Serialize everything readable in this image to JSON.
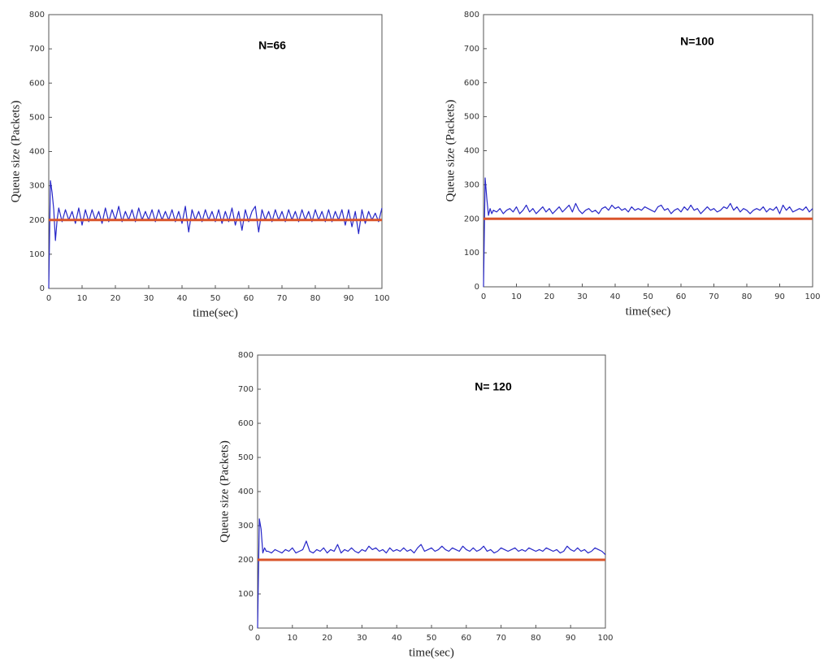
{
  "chart_data": [
    {
      "type": "line",
      "annotation": "N=66",
      "xlabel": "time(sec)",
      "ylabel": "Queue size (Packets)",
      "xlim": [
        0,
        100
      ],
      "ylim": [
        0,
        800
      ],
      "xticks": [
        0,
        10,
        20,
        30,
        40,
        50,
        60,
        70,
        80,
        90,
        100
      ],
      "yticks": [
        0,
        100,
        200,
        300,
        400,
        500,
        600,
        700,
        800
      ],
      "grid": false,
      "series": [
        {
          "color": "#2626c8",
          "x": [
            0,
            0.5,
            1,
            1.5,
            2,
            2.5,
            3,
            4,
            5,
            6,
            7,
            8,
            9,
            10,
            11,
            12,
            13,
            14,
            15,
            16,
            17,
            18,
            19,
            20,
            21,
            22,
            23,
            24,
            25,
            26,
            27,
            28,
            29,
            30,
            31,
            32,
            33,
            34,
            35,
            36,
            37,
            38,
            39,
            40,
            41,
            42,
            43,
            44,
            45,
            46,
            47,
            48,
            49,
            50,
            51,
            52,
            53,
            54,
            55,
            56,
            57,
            58,
            59,
            60,
            61,
            62,
            63,
            64,
            65,
            66,
            67,
            68,
            69,
            70,
            71,
            72,
            73,
            74,
            75,
            76,
            77,
            78,
            79,
            80,
            81,
            82,
            83,
            84,
            85,
            86,
            87,
            88,
            89,
            90,
            91,
            92,
            93,
            94,
            95,
            96,
            97,
            98,
            99,
            100
          ],
          "values": [
            0,
            315,
            280,
            230,
            140,
            200,
            235,
            195,
            230,
            200,
            225,
            190,
            235,
            185,
            230,
            195,
            230,
            200,
            225,
            190,
            235,
            195,
            230,
            200,
            240,
            195,
            225,
            200,
            230,
            195,
            235,
            200,
            225,
            200,
            230,
            195,
            230,
            200,
            225,
            200,
            230,
            195,
            225,
            190,
            240,
            165,
            230,
            200,
            225,
            195,
            230,
            200,
            225,
            195,
            230,
            190,
            225,
            195,
            235,
            185,
            225,
            170,
            230,
            195,
            225,
            240,
            165,
            230,
            200,
            225,
            195,
            230,
            200,
            225,
            195,
            230,
            200,
            225,
            195,
            230,
            200,
            225,
            195,
            230,
            200,
            225,
            195,
            230,
            195,
            225,
            200,
            230,
            185,
            230,
            180,
            225,
            160,
            230,
            190,
            225,
            200,
            220,
            195,
            235
          ]
        },
        {
          "color": "#d9542b",
          "x": [
            0,
            100
          ],
          "values": [
            200,
            200
          ]
        }
      ]
    },
    {
      "type": "line",
      "annotation": "N=100",
      "xlabel": "time(sec)",
      "ylabel": "Queue size (Packets)",
      "xlim": [
        0,
        100
      ],
      "ylim": [
        0,
        800
      ],
      "xticks": [
        0,
        10,
        20,
        30,
        40,
        50,
        60,
        70,
        80,
        90,
        100
      ],
      "yticks": [
        0,
        100,
        200,
        300,
        400,
        500,
        600,
        700,
        800
      ],
      "grid": false,
      "series": [
        {
          "color": "#2626c8",
          "x": [
            0,
            0.5,
            1,
            1.5,
            2,
            2.5,
            3,
            4,
            5,
            6,
            7,
            8,
            9,
            10,
            11,
            12,
            13,
            14,
            15,
            16,
            17,
            18,
            19,
            20,
            21,
            22,
            23,
            24,
            25,
            26,
            27,
            28,
            29,
            30,
            31,
            32,
            33,
            34,
            35,
            36,
            37,
            38,
            39,
            40,
            41,
            42,
            43,
            44,
            45,
            46,
            47,
            48,
            49,
            50,
            51,
            52,
            53,
            54,
            55,
            56,
            57,
            58,
            59,
            60,
            61,
            62,
            63,
            64,
            65,
            66,
            67,
            68,
            69,
            70,
            71,
            72,
            73,
            74,
            75,
            76,
            77,
            78,
            79,
            80,
            81,
            82,
            83,
            84,
            85,
            86,
            87,
            88,
            89,
            90,
            91,
            92,
            93,
            94,
            95,
            96,
            97,
            98,
            99,
            100
          ],
          "values": [
            0,
            320,
            260,
            210,
            230,
            215,
            225,
            220,
            230,
            215,
            225,
            230,
            220,
            235,
            215,
            225,
            240,
            220,
            230,
            215,
            225,
            235,
            220,
            230,
            215,
            225,
            235,
            220,
            230,
            240,
            220,
            245,
            225,
            215,
            225,
            230,
            220,
            225,
            215,
            230,
            235,
            225,
            240,
            230,
            235,
            225,
            230,
            220,
            235,
            225,
            230,
            225,
            235,
            230,
            225,
            220,
            235,
            240,
            225,
            230,
            215,
            225,
            230,
            220,
            235,
            225,
            240,
            225,
            230,
            215,
            225,
            235,
            225,
            230,
            220,
            225,
            235,
            230,
            245,
            225,
            235,
            220,
            230,
            225,
            215,
            225,
            230,
            225,
            235,
            220,
            230,
            225,
            235,
            215,
            240,
            225,
            235,
            220,
            225,
            230,
            225,
            235,
            220,
            230
          ]
        },
        {
          "color": "#d9542b",
          "x": [
            0,
            100
          ],
          "values": [
            200,
            200
          ]
        }
      ]
    },
    {
      "type": "line",
      "annotation": "N= 120",
      "xlabel": "time(sec)",
      "ylabel": "Queue size (Packets)",
      "xlim": [
        0,
        100
      ],
      "ylim": [
        0,
        800
      ],
      "xticks": [
        0,
        10,
        20,
        30,
        40,
        50,
        60,
        70,
        80,
        90,
        100
      ],
      "yticks": [
        0,
        100,
        200,
        300,
        400,
        500,
        600,
        700,
        800
      ],
      "grid": false,
      "series": [
        {
          "color": "#2626c8",
          "x": [
            0,
            0.5,
            1,
            1.5,
            2,
            2.5,
            3,
            4,
            5,
            6,
            7,
            8,
            9,
            10,
            11,
            12,
            13,
            14,
            15,
            16,
            17,
            18,
            19,
            20,
            21,
            22,
            23,
            24,
            25,
            26,
            27,
            28,
            29,
            30,
            31,
            32,
            33,
            34,
            35,
            36,
            37,
            38,
            39,
            40,
            41,
            42,
            43,
            44,
            45,
            46,
            47,
            48,
            49,
            50,
            51,
            52,
            53,
            54,
            55,
            56,
            57,
            58,
            59,
            60,
            61,
            62,
            63,
            64,
            65,
            66,
            67,
            68,
            69,
            70,
            71,
            72,
            73,
            74,
            75,
            76,
            77,
            78,
            79,
            80,
            81,
            82,
            83,
            84,
            85,
            86,
            87,
            88,
            89,
            90,
            91,
            92,
            93,
            94,
            95,
            96,
            97,
            98,
            99,
            100
          ],
          "values": [
            0,
            320,
            290,
            220,
            235,
            225,
            225,
            220,
            230,
            225,
            220,
            230,
            225,
            235,
            220,
            225,
            230,
            255,
            225,
            220,
            230,
            225,
            235,
            220,
            230,
            225,
            245,
            220,
            230,
            225,
            235,
            225,
            220,
            230,
            225,
            240,
            230,
            235,
            225,
            230,
            220,
            235,
            225,
            230,
            225,
            235,
            225,
            230,
            220,
            235,
            245,
            225,
            230,
            235,
            225,
            230,
            240,
            230,
            225,
            235,
            230,
            225,
            240,
            230,
            225,
            235,
            225,
            230,
            240,
            225,
            230,
            220,
            225,
            235,
            230,
            225,
            230,
            235,
            225,
            230,
            225,
            235,
            230,
            225,
            230,
            225,
            235,
            230,
            225,
            230,
            220,
            225,
            240,
            230,
            225,
            235,
            225,
            230,
            220,
            225,
            235,
            230,
            225,
            215
          ]
        },
        {
          "color": "#d9542b",
          "x": [
            0,
            100
          ],
          "values": [
            200,
            200
          ]
        }
      ]
    }
  ]
}
